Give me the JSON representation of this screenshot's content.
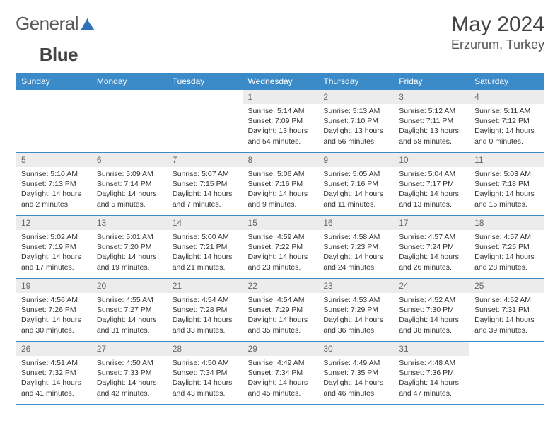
{
  "logo": {
    "text1": "General",
    "text2": "Blue"
  },
  "header": {
    "month": "May 2024",
    "location": "Erzurum, Turkey"
  },
  "colors": {
    "header_bg": "#3b8bc9",
    "header_text": "#ffffff",
    "daynum_bg": "#ececec",
    "daynum_text": "#666666",
    "border": "#3b8bc9",
    "logo_accent": "#2e74b5"
  },
  "weekdays": [
    "Sunday",
    "Monday",
    "Tuesday",
    "Wednesday",
    "Thursday",
    "Friday",
    "Saturday"
  ],
  "weeks": [
    [
      {
        "empty": true
      },
      {
        "empty": true
      },
      {
        "empty": true
      },
      {
        "day": "1",
        "sunrise": "Sunrise: 5:14 AM",
        "sunset": "Sunset: 7:09 PM",
        "daylight": "Daylight: 13 hours and 54 minutes."
      },
      {
        "day": "2",
        "sunrise": "Sunrise: 5:13 AM",
        "sunset": "Sunset: 7:10 PM",
        "daylight": "Daylight: 13 hours and 56 minutes."
      },
      {
        "day": "3",
        "sunrise": "Sunrise: 5:12 AM",
        "sunset": "Sunset: 7:11 PM",
        "daylight": "Daylight: 13 hours and 58 minutes."
      },
      {
        "day": "4",
        "sunrise": "Sunrise: 5:11 AM",
        "sunset": "Sunset: 7:12 PM",
        "daylight": "Daylight: 14 hours and 0 minutes."
      }
    ],
    [
      {
        "day": "5",
        "sunrise": "Sunrise: 5:10 AM",
        "sunset": "Sunset: 7:13 PM",
        "daylight": "Daylight: 14 hours and 2 minutes."
      },
      {
        "day": "6",
        "sunrise": "Sunrise: 5:09 AM",
        "sunset": "Sunset: 7:14 PM",
        "daylight": "Daylight: 14 hours and 5 minutes."
      },
      {
        "day": "7",
        "sunrise": "Sunrise: 5:07 AM",
        "sunset": "Sunset: 7:15 PM",
        "daylight": "Daylight: 14 hours and 7 minutes."
      },
      {
        "day": "8",
        "sunrise": "Sunrise: 5:06 AM",
        "sunset": "Sunset: 7:16 PM",
        "daylight": "Daylight: 14 hours and 9 minutes."
      },
      {
        "day": "9",
        "sunrise": "Sunrise: 5:05 AM",
        "sunset": "Sunset: 7:16 PM",
        "daylight": "Daylight: 14 hours and 11 minutes."
      },
      {
        "day": "10",
        "sunrise": "Sunrise: 5:04 AM",
        "sunset": "Sunset: 7:17 PM",
        "daylight": "Daylight: 14 hours and 13 minutes."
      },
      {
        "day": "11",
        "sunrise": "Sunrise: 5:03 AM",
        "sunset": "Sunset: 7:18 PM",
        "daylight": "Daylight: 14 hours and 15 minutes."
      }
    ],
    [
      {
        "day": "12",
        "sunrise": "Sunrise: 5:02 AM",
        "sunset": "Sunset: 7:19 PM",
        "daylight": "Daylight: 14 hours and 17 minutes."
      },
      {
        "day": "13",
        "sunrise": "Sunrise: 5:01 AM",
        "sunset": "Sunset: 7:20 PM",
        "daylight": "Daylight: 14 hours and 19 minutes."
      },
      {
        "day": "14",
        "sunrise": "Sunrise: 5:00 AM",
        "sunset": "Sunset: 7:21 PM",
        "daylight": "Daylight: 14 hours and 21 minutes."
      },
      {
        "day": "15",
        "sunrise": "Sunrise: 4:59 AM",
        "sunset": "Sunset: 7:22 PM",
        "daylight": "Daylight: 14 hours and 23 minutes."
      },
      {
        "day": "16",
        "sunrise": "Sunrise: 4:58 AM",
        "sunset": "Sunset: 7:23 PM",
        "daylight": "Daylight: 14 hours and 24 minutes."
      },
      {
        "day": "17",
        "sunrise": "Sunrise: 4:57 AM",
        "sunset": "Sunset: 7:24 PM",
        "daylight": "Daylight: 14 hours and 26 minutes."
      },
      {
        "day": "18",
        "sunrise": "Sunrise: 4:57 AM",
        "sunset": "Sunset: 7:25 PM",
        "daylight": "Daylight: 14 hours and 28 minutes."
      }
    ],
    [
      {
        "day": "19",
        "sunrise": "Sunrise: 4:56 AM",
        "sunset": "Sunset: 7:26 PM",
        "daylight": "Daylight: 14 hours and 30 minutes."
      },
      {
        "day": "20",
        "sunrise": "Sunrise: 4:55 AM",
        "sunset": "Sunset: 7:27 PM",
        "daylight": "Daylight: 14 hours and 31 minutes."
      },
      {
        "day": "21",
        "sunrise": "Sunrise: 4:54 AM",
        "sunset": "Sunset: 7:28 PM",
        "daylight": "Daylight: 14 hours and 33 minutes."
      },
      {
        "day": "22",
        "sunrise": "Sunrise: 4:54 AM",
        "sunset": "Sunset: 7:29 PM",
        "daylight": "Daylight: 14 hours and 35 minutes."
      },
      {
        "day": "23",
        "sunrise": "Sunrise: 4:53 AM",
        "sunset": "Sunset: 7:29 PM",
        "daylight": "Daylight: 14 hours and 36 minutes."
      },
      {
        "day": "24",
        "sunrise": "Sunrise: 4:52 AM",
        "sunset": "Sunset: 7:30 PM",
        "daylight": "Daylight: 14 hours and 38 minutes."
      },
      {
        "day": "25",
        "sunrise": "Sunrise: 4:52 AM",
        "sunset": "Sunset: 7:31 PM",
        "daylight": "Daylight: 14 hours and 39 minutes."
      }
    ],
    [
      {
        "day": "26",
        "sunrise": "Sunrise: 4:51 AM",
        "sunset": "Sunset: 7:32 PM",
        "daylight": "Daylight: 14 hours and 41 minutes."
      },
      {
        "day": "27",
        "sunrise": "Sunrise: 4:50 AM",
        "sunset": "Sunset: 7:33 PM",
        "daylight": "Daylight: 14 hours and 42 minutes."
      },
      {
        "day": "28",
        "sunrise": "Sunrise: 4:50 AM",
        "sunset": "Sunset: 7:34 PM",
        "daylight": "Daylight: 14 hours and 43 minutes."
      },
      {
        "day": "29",
        "sunrise": "Sunrise: 4:49 AM",
        "sunset": "Sunset: 7:34 PM",
        "daylight": "Daylight: 14 hours and 45 minutes."
      },
      {
        "day": "30",
        "sunrise": "Sunrise: 4:49 AM",
        "sunset": "Sunset: 7:35 PM",
        "daylight": "Daylight: 14 hours and 46 minutes."
      },
      {
        "day": "31",
        "sunrise": "Sunrise: 4:48 AM",
        "sunset": "Sunset: 7:36 PM",
        "daylight": "Daylight: 14 hours and 47 minutes."
      },
      {
        "empty": true
      }
    ]
  ]
}
